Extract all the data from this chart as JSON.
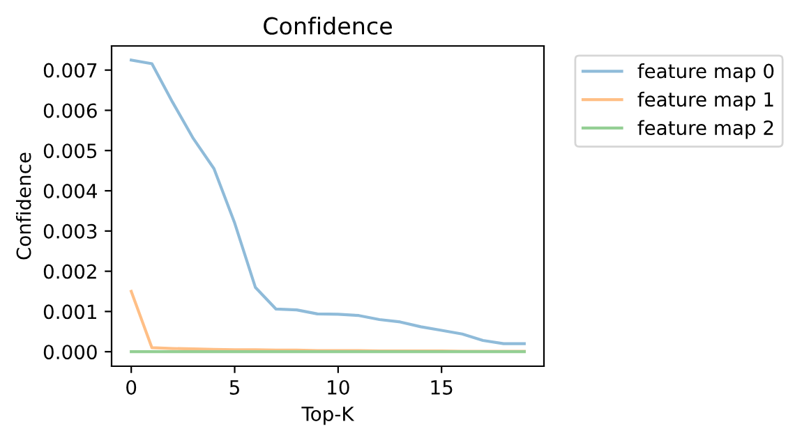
{
  "chart_data": {
    "type": "line",
    "title": "Confidence",
    "xlabel": "Top-K",
    "ylabel": "Confidence",
    "x": [
      0,
      1,
      2,
      3,
      4,
      5,
      6,
      7,
      8,
      9,
      10,
      11,
      12,
      13,
      14,
      15,
      16,
      17,
      18,
      19
    ],
    "series": [
      {
        "name": "feature map 0",
        "color": "#8fbbd9",
        "values": [
          0.00725,
          0.00716,
          0.0062,
          0.0053,
          0.00455,
          0.0032,
          0.0016,
          0.00106,
          0.00104,
          0.00094,
          0.00093,
          0.0009,
          0.0008,
          0.00074,
          0.00062,
          0.00053,
          0.00044,
          0.00028,
          0.0002,
          0.0002
        ]
      },
      {
        "name": "feature map 1",
        "color": "#ffbf86",
        "values": [
          0.0015,
          0.0001,
          8e-05,
          7e-05,
          6e-05,
          5e-05,
          5e-05,
          4e-05,
          4e-05,
          3e-05,
          3e-05,
          3e-05,
          2e-05,
          2e-05,
          2e-05,
          2e-05,
          1e-05,
          1e-05,
          1e-05,
          1e-05
        ]
      },
      {
        "name": "feature map 2",
        "color": "#94cf94",
        "values": [
          0,
          0,
          0,
          0,
          0,
          0,
          0,
          0,
          0,
          0,
          0,
          0,
          0,
          0,
          0,
          0,
          0,
          0,
          0,
          0
        ]
      }
    ],
    "xlim": [
      -0.95,
      19.95
    ],
    "xticks": [
      0,
      5,
      10,
      15
    ],
    "ylim": [
      -0.00036,
      0.0076
    ],
    "yticks": [
      {
        "value": 0,
        "label": "0.000"
      },
      {
        "value": 0.001,
        "label": "0.001"
      },
      {
        "value": 0.002,
        "label": "0.002"
      },
      {
        "value": 0.003,
        "label": "0.003"
      },
      {
        "value": 0.004,
        "label": "0.004"
      },
      {
        "value": 0.005,
        "label": "0.005"
      },
      {
        "value": 0.006,
        "label": "0.006"
      },
      {
        "value": 0.007,
        "label": "0.007"
      }
    ],
    "grid": false,
    "legend": "right",
    "marker": "none",
    "line_style": "solid"
  }
}
